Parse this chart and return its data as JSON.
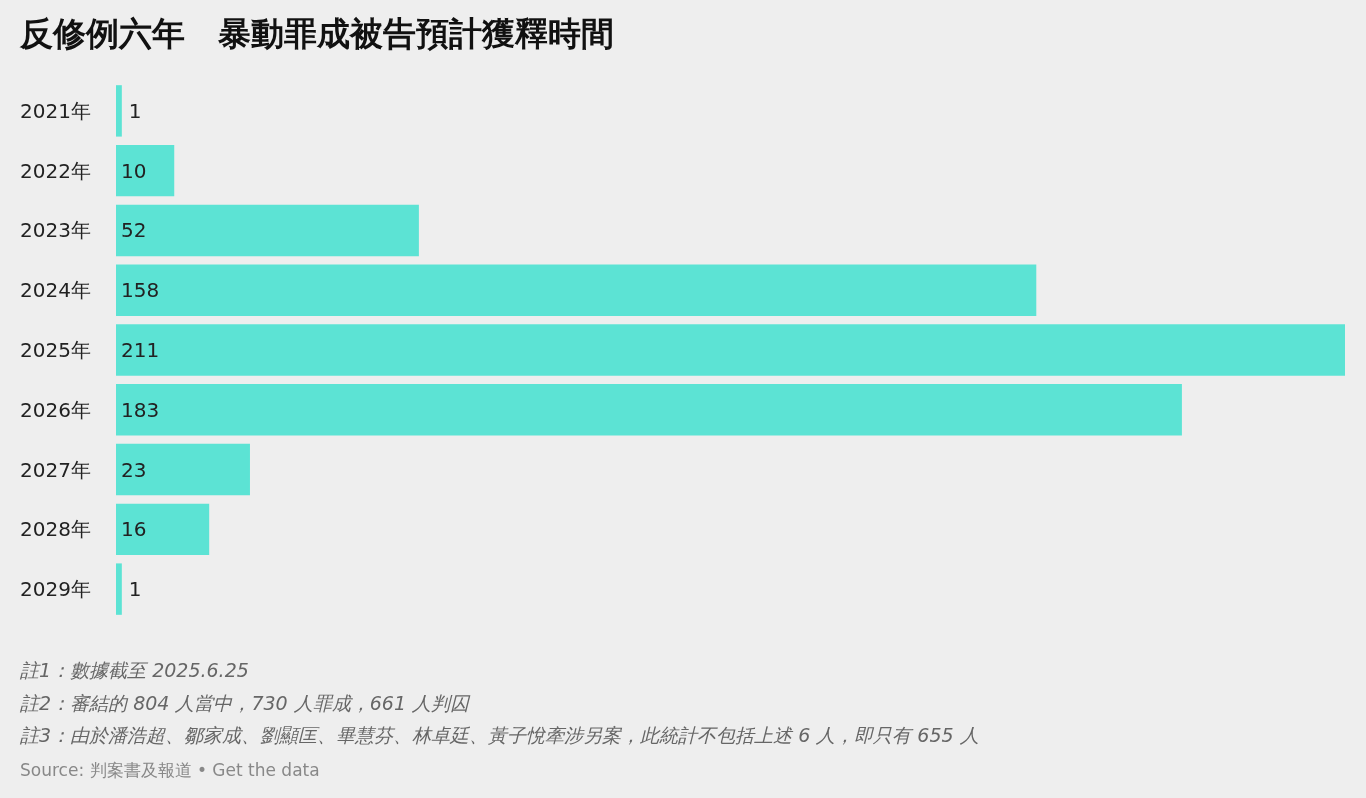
{
  "chart_data": {
    "type": "bar",
    "orientation": "horizontal",
    "title": "反修例六年　暴動罪成被告預計獲釋時間",
    "categories": [
      "2021年",
      "2022年",
      "2023年",
      "2024年",
      "2025年",
      "2026年",
      "2027年",
      "2028年",
      "2029年"
    ],
    "values": [
      1,
      10,
      52,
      158,
      211,
      183,
      23,
      16,
      1
    ],
    "color": "#5ce3d4",
    "data_labels": true,
    "annotations": [
      "註1：數據截至 2025.6.25",
      "註2：審結的 804 人當中，730 人罪成，661 人判囚",
      "註3：由於潘浩超、鄒家成、劉顯匡、畢慧芬、林卓廷、黃子悅牽涉另案，此統計不包括上述 6 人，即只有 655 人",
      "Source: 判案書及報道 • Get the data"
    ]
  }
}
